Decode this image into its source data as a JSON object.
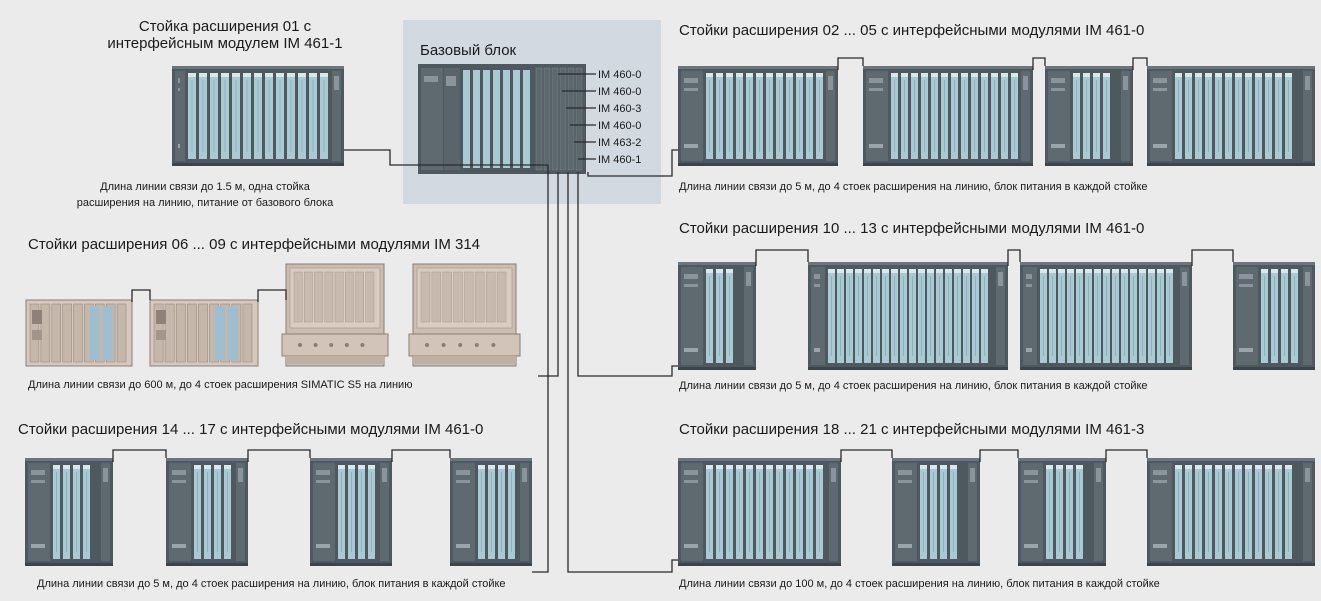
{
  "colors": {
    "background": "#ebebeb",
    "base_unit_area": "#d3d9e0",
    "rack_frame": "#4d585f",
    "module_slot": "#a9c9d3",
    "s5_rack": "#d6c8bc"
  },
  "base_unit": {
    "title": "Базовый блок",
    "interface_modules": [
      "IM 460-0",
      "IM 460-0",
      "IM 460-3",
      "IM 460-0",
      "IM 463-2",
      "IM 460-1"
    ]
  },
  "groups": {
    "g01": {
      "title_line1": "Стойка расширения 01 с",
      "title_line2": "интерфейсным модулем IM 461-1",
      "note_line1": "Длина линии связи до 1.5 м, одна стойка",
      "note_line2": "расширения на линию, питание от базового блока"
    },
    "g02": {
      "title": "Стойки расширения 02 ... 05 с интерфейсными модулями IM 461-0",
      "note": "Длина линии связи до 5 м, до 4 стоек расширения на линию, блок питания в каждой стойке"
    },
    "g06": {
      "title": "Стойки расширения 06 ... 09 с интерфейсными модулями IM 314",
      "note": "Длина линии связи до 600 м, до 4 стоек расширения SIMATIC S5 на линию"
    },
    "g10": {
      "title": "Стойки расширения 10 ... 13 с интерфейсными модулями IM 461-0",
      "note": "Длина линии связи до 5 м, до 4 стоек расширения на линию, блок питания в каждой стойке"
    },
    "g14": {
      "title": "Стойки расширения 14 ... 17 с интерфейсными модулями IM 461-0",
      "note": "Длина линии связи до 5 м, до 4 стоек расширения на линию, блок питания в каждой стойке"
    },
    "g18": {
      "title": "Стойки расширения 18 ... 21 с интерфейсными модулями IM 461-3",
      "note": "Длина линии связи до 100 м, до 4 стоек расширения на линию, блок питания в каждой стойке"
    }
  }
}
